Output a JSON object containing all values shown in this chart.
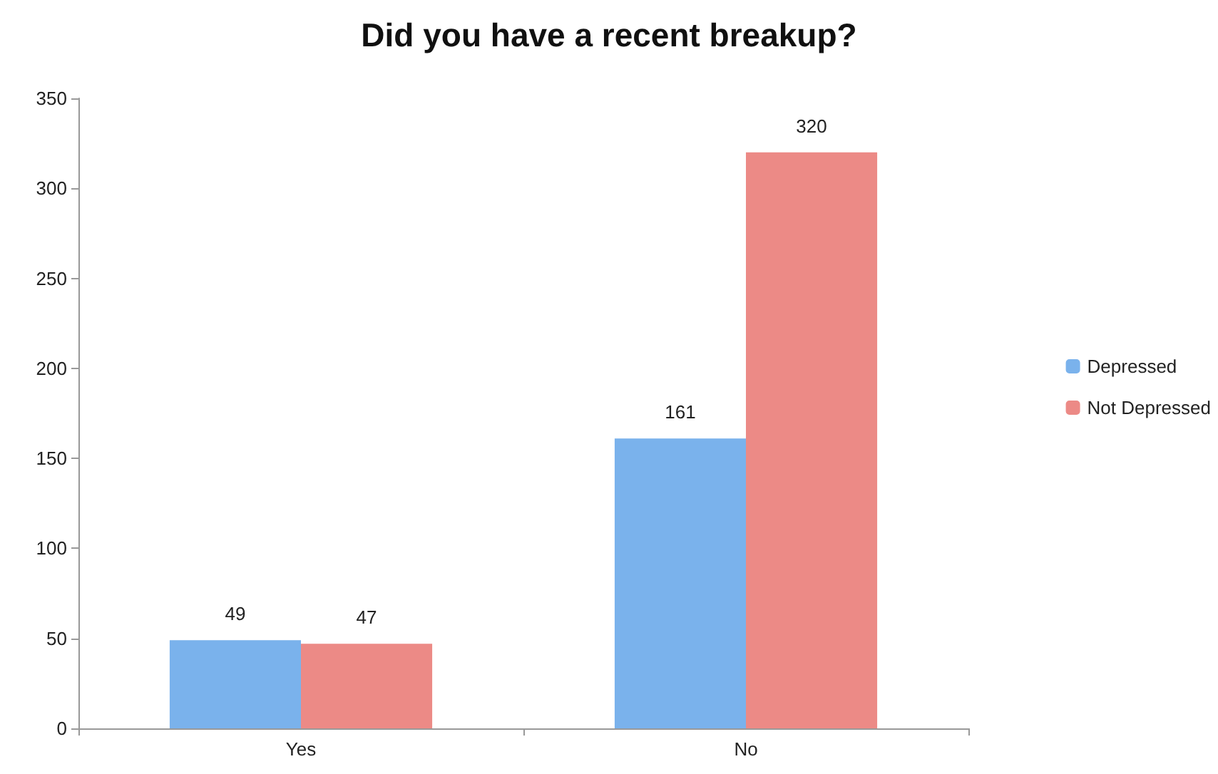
{
  "chart_data": {
    "type": "bar",
    "title": "Did you have a recent breakup?",
    "categories": [
      "Yes",
      "No"
    ],
    "series": [
      {
        "name": "Depressed",
        "color": "#7ab2ec",
        "values": [
          49,
          161
        ]
      },
      {
        "name": "Not Depressed",
        "color": "#ec8a86",
        "values": [
          47,
          320
        ]
      }
    ],
    "ylim": [
      0,
      350
    ],
    "yticks": [
      0,
      50,
      100,
      150,
      200,
      250,
      300,
      350
    ],
    "grid": false,
    "legend": "right",
    "data_labels": true
  }
}
